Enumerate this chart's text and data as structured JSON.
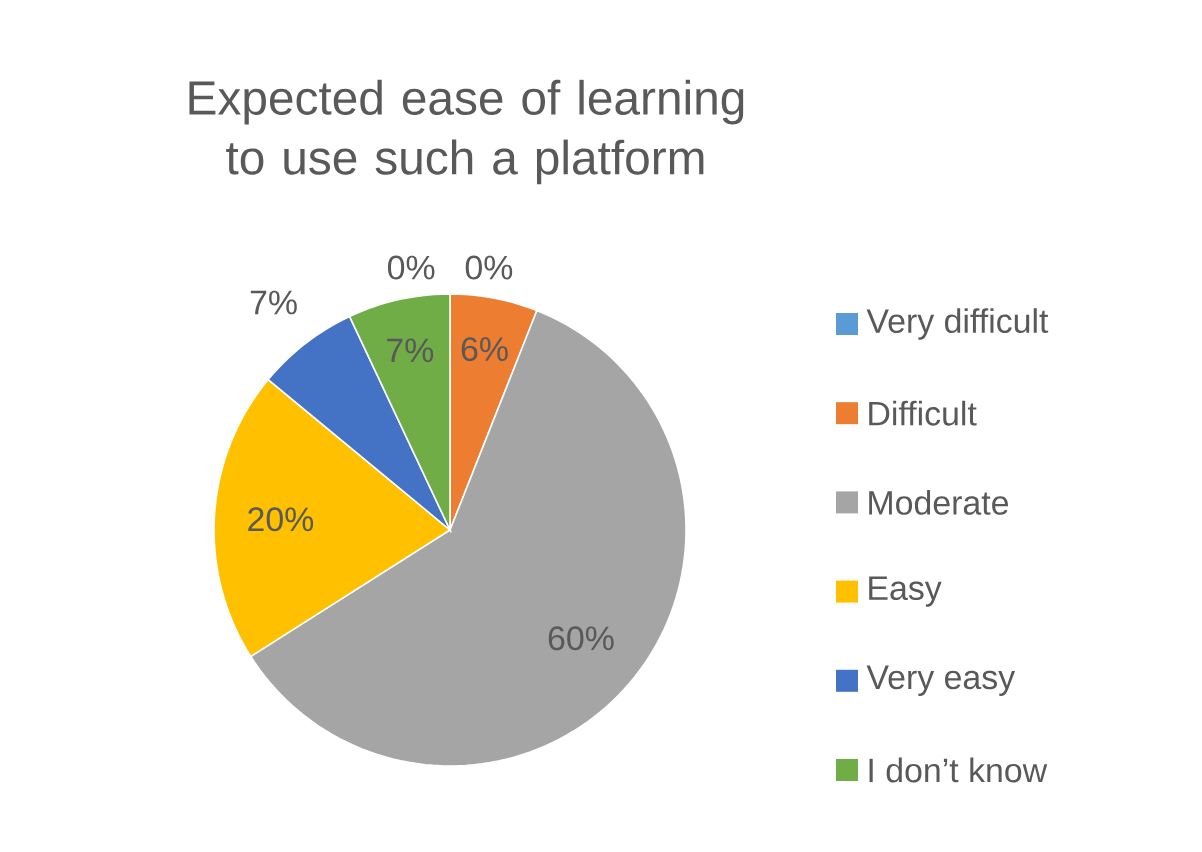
{
  "chart_data": {
    "type": "pie",
    "title": "Expected ease of learning to use such a platform",
    "categories": [
      "Very difficult",
      "Difficult",
      "Moderate",
      "Easy",
      "Very easy",
      "I don’t know",
      null
    ],
    "values": [
      0,
      6,
      60,
      20,
      7,
      7,
      0
    ],
    "colors": [
      "#5b9bd5",
      "#ed7d31",
      "#a5a5a5",
      "#ffc000",
      "#4472c4",
      "#70ad47",
      "#264478"
    ],
    "value_labels": [
      "0%",
      "6%",
      "60%",
      "20%",
      "7%",
      "7%",
      "0%"
    ],
    "legend": "right"
  }
}
